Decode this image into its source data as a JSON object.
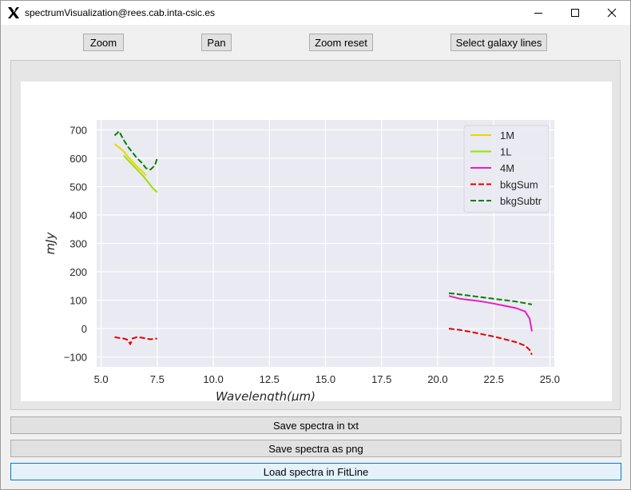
{
  "window": {
    "title": "spectrumVisualization@rees.cab.inta-csic.es",
    "app_icon": "x11-logo-icon",
    "controls": [
      "minimize-icon",
      "maximize-icon",
      "close-icon"
    ]
  },
  "toolbar": {
    "zoom_label": "Zoom",
    "pan_label": "Pan",
    "zoom_reset_label": "Zoom reset",
    "select_lines_label": "Select galaxy lines"
  },
  "actions": {
    "save_txt_label": "Save spectra in txt",
    "save_png_label": "Save spectra as png",
    "load_fitline_label": "Load spectra in FitLine"
  },
  "colors": {
    "plot_bg": "#eaeaf2",
    "grid": "#ffffff",
    "focus": "#0078d7"
  },
  "chart_data": {
    "type": "line",
    "title": "",
    "xlabel": "Wavelength(μm)",
    "ylabel": "mJy",
    "xlim": [
      4.8,
      25.2
    ],
    "ylim": [
      -135,
      735
    ],
    "xticks": [
      5.0,
      7.5,
      10.0,
      12.5,
      15.0,
      17.5,
      20.0,
      22.5,
      25.0
    ],
    "xtick_labels": [
      "5.0",
      "7.5",
      "10.0",
      "12.5",
      "15.0",
      "17.5",
      "20.0",
      "22.5",
      "25.0"
    ],
    "yticks": [
      700,
      600,
      500,
      400,
      300,
      200,
      100,
      0,
      -100
    ],
    "ytick_labels": [
      "700",
      "600",
      "500",
      "400",
      "300",
      "200",
      "100",
      "0",
      "−100"
    ],
    "grid": true,
    "legend_position": "top-right",
    "series": [
      {
        "name": "1M",
        "color": "#e6d800",
        "style": "solid",
        "segments": [
          [
            [
              5.6,
              650
            ],
            [
              5.8,
              638
            ],
            [
              6.0,
              625
            ],
            [
              6.2,
              605
            ],
            [
              6.4,
              588
            ],
            [
              6.6,
              570
            ],
            [
              6.8,
              556
            ],
            [
              7.0,
              540
            ]
          ]
        ]
      },
      {
        "name": "1L",
        "color": "#9be000",
        "style": "solid",
        "segments": [
          [
            [
              6.0,
              610
            ],
            [
              6.3,
              585
            ],
            [
              6.6,
              560
            ],
            [
              6.9,
              535
            ],
            [
              7.1,
              515
            ],
            [
              7.3,
              495
            ],
            [
              7.5,
              480
            ]
          ]
        ]
      },
      {
        "name": "4M",
        "color": "#e61ec4",
        "style": "solid",
        "segments": [
          [
            [
              20.5,
              115
            ],
            [
              21.0,
              105
            ],
            [
              21.5,
              100
            ],
            [
              22.0,
              95
            ],
            [
              22.5,
              88
            ],
            [
              23.0,
              80
            ],
            [
              23.5,
              72
            ],
            [
              23.9,
              60
            ],
            [
              24.1,
              35
            ],
            [
              24.2,
              -10
            ]
          ]
        ]
      },
      {
        "name": "bkgSum",
        "color": "#e00000",
        "style": "dashed",
        "segments": [
          [
            [
              5.6,
              -30
            ],
            [
              5.8,
              -33
            ],
            [
              6.0,
              -35
            ],
            [
              6.2,
              -40
            ],
            [
              6.3,
              -55
            ],
            [
              6.4,
              -35
            ],
            [
              6.6,
              -30
            ],
            [
              6.8,
              -32
            ],
            [
              7.0,
              -35
            ],
            [
              7.2,
              -38
            ],
            [
              7.4,
              -36
            ],
            [
              7.5,
              -35
            ]
          ],
          [
            [
              20.5,
              0
            ],
            [
              21.0,
              -5
            ],
            [
              21.5,
              -12
            ],
            [
              22.0,
              -20
            ],
            [
              22.5,
              -28
            ],
            [
              23.0,
              -38
            ],
            [
              23.5,
              -48
            ],
            [
              23.9,
              -60
            ],
            [
              24.1,
              -75
            ],
            [
              24.2,
              -92
            ]
          ]
        ]
      },
      {
        "name": "bkgSubtr",
        "color": "#008000",
        "style": "dashed",
        "segments": [
          [
            [
              5.6,
              680
            ],
            [
              5.8,
              695
            ],
            [
              6.0,
              665
            ],
            [
              6.2,
              640
            ],
            [
              6.4,
              620
            ],
            [
              6.6,
              600
            ],
            [
              6.8,
              585
            ],
            [
              7.0,
              565
            ],
            [
              7.2,
              560
            ],
            [
              7.4,
              575
            ],
            [
              7.5,
              600
            ]
          ],
          [
            [
              20.5,
              125
            ],
            [
              21.0,
              120
            ],
            [
              21.5,
              115
            ],
            [
              22.0,
              110
            ],
            [
              22.5,
              105
            ],
            [
              23.0,
              100
            ],
            [
              23.5,
              95
            ],
            [
              24.0,
              88
            ],
            [
              24.2,
              85
            ]
          ]
        ]
      }
    ]
  }
}
